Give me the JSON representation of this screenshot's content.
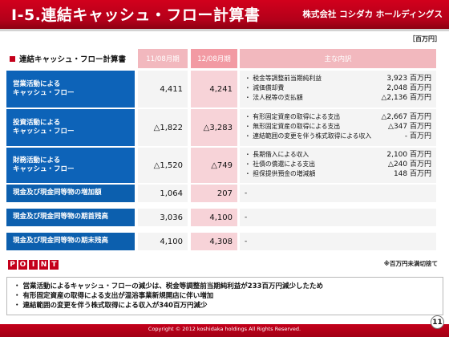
{
  "header": {
    "title": "Ⅰ-5.連結キャッシュ・フロー計算書",
    "company": "株式会社 コシダカ ホールディングス"
  },
  "unit": "［百万円］",
  "table": {
    "title": "連結キャッシュ・フロー計算書",
    "col_prev": "11/08月期",
    "col_curr": "12/08月期",
    "col_note": "主な内訳",
    "rows": [
      {
        "label_lines": [
          "営業活動による",
          "キャッシュ・フロー"
        ],
        "prev": "4,411",
        "curr": "4,241",
        "notes": [
          {
            "item": "・ 税金等調整前当期純利益",
            "value": "3,923 百万円"
          },
          {
            "item": "・ 減価償却費",
            "value": "2,048 百万円"
          },
          {
            "item": "・ 法人税等の支払額",
            "value": "△2,136 百万円"
          }
        ]
      },
      {
        "label_lines": [
          "投資活動による",
          "キャッシュ・フロー"
        ],
        "prev": "△1,822",
        "curr": "△3,283",
        "notes": [
          {
            "item": "・ 有形固定資産の取得による支出",
            "value": "△2,667 百万円"
          },
          {
            "item": "・ 無形固定資産の取得による支出",
            "value": "△347 百万円"
          },
          {
            "item": "・ 連結範囲の変更を伴う株式取得による収入",
            "value": "- 百万円"
          }
        ]
      },
      {
        "label_lines": [
          "財務活動による",
          "キャッシュ・フロー"
        ],
        "prev": "△1,520",
        "curr": "△749",
        "notes": [
          {
            "item": "・ 長期借入による収入",
            "value": "2,100 百万円"
          },
          {
            "item": "・ 社債の償還による支出",
            "value": "△240 百万円"
          },
          {
            "item": "・ 担保提供預金の増減額",
            "value": "148 百万円"
          }
        ]
      },
      {
        "label_lines": [
          "現金及び現金同等物の増加額"
        ],
        "prev": "1,064",
        "curr": "207",
        "dash": "-"
      },
      {
        "label_lines": [
          "現金及び現金同等物の期首残高"
        ],
        "prev": "3,036",
        "curr": "4,100",
        "dash": "-"
      },
      {
        "label_lines": [
          "現金及び現金同等物の期末残高"
        ],
        "prev": "4,100",
        "curr": "4,308",
        "dash": "-"
      }
    ]
  },
  "footnote": "※百万円未満切捨て",
  "point": {
    "letters": [
      "P",
      "O",
      "I",
      "N",
      "T"
    ],
    "lines": [
      "・ 営業活動によるキャッシュ・フローの減少は、税金等調整前当期純利益が233百万円減少したため",
      "・ 有形固定資産の取得による支出が温浴事業新規開店に伴い増加",
      "・ 連結範囲の変更を伴う株式取得による収入が340百万円減少"
    ]
  },
  "footer": {
    "copyright": "Copyright © 2012 koshidaka holdings All Rights Reserved.",
    "page": "11"
  },
  "colors": {
    "brand_red": "#c4001b",
    "row_blue": "#0d63b8",
    "pink_cell": "#f7d3d8"
  }
}
